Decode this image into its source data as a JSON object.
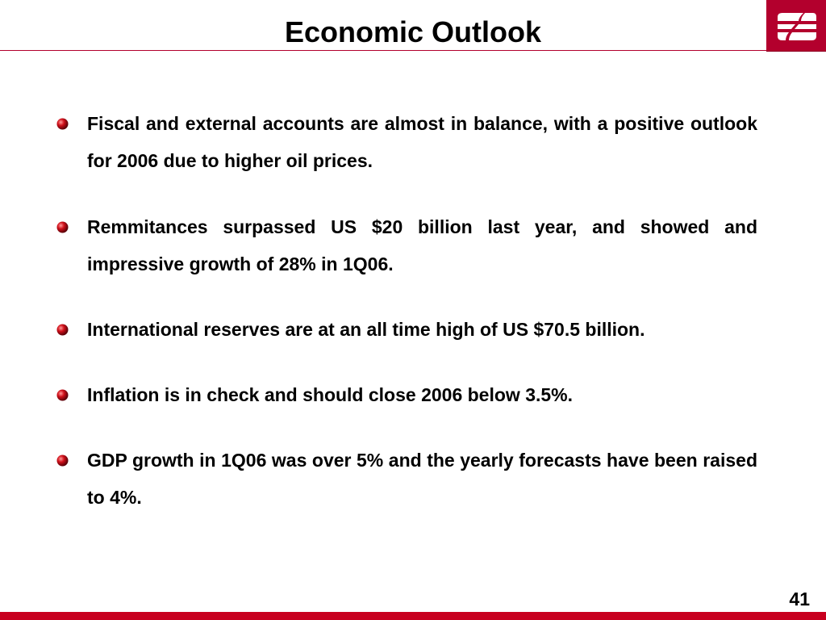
{
  "slide": {
    "title": "Economic Outlook",
    "page_number": "41",
    "accent_color": "#b3002d",
    "footer_color": "#c8001f",
    "logo_icon": "bank-logo-icon",
    "bullet_icon": "red-sphere-bullet-icon"
  },
  "bullets": [
    {
      "text": "Fiscal and external accounts are almost in balance, with a positive outlook for 2006 due to higher oil prices."
    },
    {
      "text": "Remmitances surpassed US $20 billion last year, and showed and impressive growth of 28% in 1Q06."
    },
    {
      "text": "International reserves are at an all time high of US $70.5 billion."
    },
    {
      "text": "Inflation is in check and should close 2006 below 3.5%."
    },
    {
      "text": "GDP growth in 1Q06 was over 5% and the yearly forecasts have been raised to 4%."
    }
  ]
}
